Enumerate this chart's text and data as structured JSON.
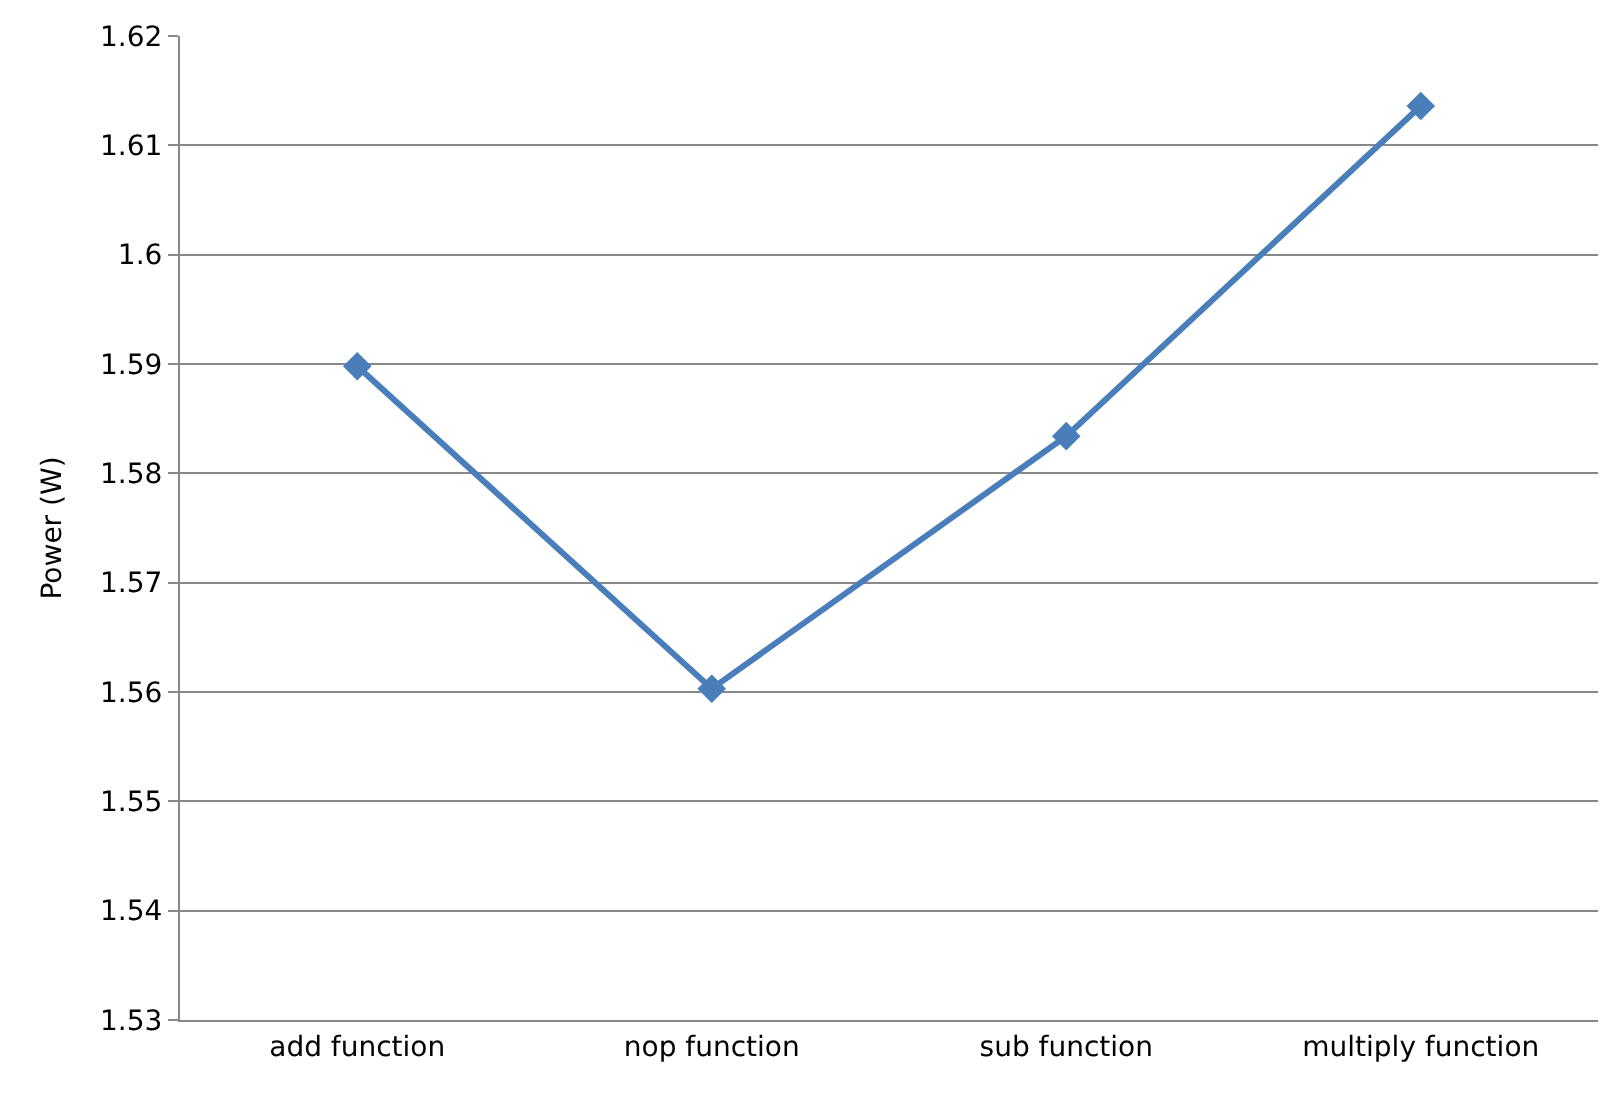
{
  "chart_data": {
    "type": "line",
    "ylabel": "Power (W)",
    "categories": [
      "add function",
      "nop function",
      "sub function",
      "multiply function"
    ],
    "series": [
      {
        "color": "#4a7ebb",
        "values": [
          1.5898,
          1.5603,
          1.5834,
          1.6136
        ]
      }
    ],
    "ylim": [
      1.53,
      1.62
    ],
    "yticks": [
      1.53,
      1.54,
      1.55,
      1.56,
      1.57,
      1.58,
      1.59,
      1.6,
      1.61,
      1.62
    ],
    "grid": "y",
    "marker": "diamond",
    "line_style": "solid",
    "legend": false
  }
}
